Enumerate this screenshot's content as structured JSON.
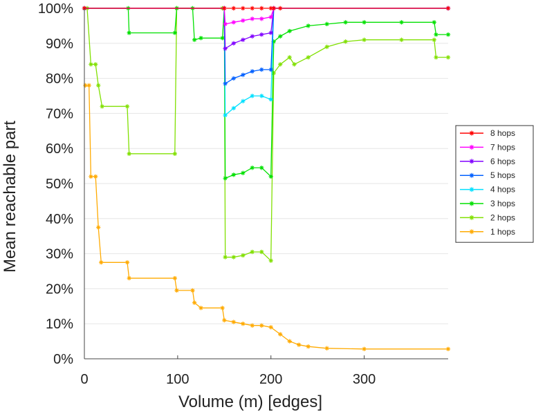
{
  "chart_data": {
    "type": "line",
    "xlabel": "Volume (m) [edges]",
    "ylabel": "Mean reachable part",
    "xlim": [
      0,
      390
    ],
    "ylim": [
      0,
      100
    ],
    "xticks": [
      0,
      100,
      200,
      300
    ],
    "yticks": [
      0,
      10,
      20,
      30,
      40,
      50,
      60,
      70,
      80,
      90,
      100
    ],
    "ytick_labels": [
      "0%",
      "10%",
      "20%",
      "30%",
      "40%",
      "50%",
      "60%",
      "70%",
      "80%",
      "90%",
      "100%"
    ],
    "grid": "horizontal",
    "legend_position": "right",
    "series": [
      {
        "name": "8 hops",
        "color": "#ff0000",
        "points": [
          [
            0,
            100
          ],
          [
            150,
            100
          ],
          [
            160,
            100
          ],
          [
            170,
            100
          ],
          [
            180,
            100
          ],
          [
            190,
            100
          ],
          [
            200,
            100
          ],
          [
            203,
            100
          ],
          [
            210,
            100
          ],
          [
            390,
            100
          ]
        ]
      },
      {
        "name": "7 hops",
        "color": "#ff00ff",
        "points": [
          [
            0,
            100
          ],
          [
            150,
            100
          ],
          [
            151,
            95.5
          ],
          [
            160,
            96
          ],
          [
            170,
            96.5
          ],
          [
            180,
            97
          ],
          [
            190,
            97
          ],
          [
            200,
            97.5
          ],
          [
            203,
            100
          ],
          [
            390,
            100
          ]
        ]
      },
      {
        "name": "6 hops",
        "color": "#8000ff",
        "points": [
          [
            0,
            100
          ],
          [
            150,
            100
          ],
          [
            151,
            88.5
          ],
          [
            160,
            90
          ],
          [
            170,
            91
          ],
          [
            180,
            92
          ],
          [
            190,
            92.5
          ],
          [
            200,
            93
          ],
          [
            203,
            100
          ],
          [
            390,
            100
          ]
        ]
      },
      {
        "name": "5 hops",
        "color": "#0060ff",
        "points": [
          [
            0,
            100
          ],
          [
            150,
            100
          ],
          [
            151,
            78.5
          ],
          [
            160,
            80
          ],
          [
            170,
            81
          ],
          [
            180,
            82
          ],
          [
            190,
            82.5
          ],
          [
            200,
            82.5
          ],
          [
            203,
            100
          ],
          [
            390,
            100
          ]
        ]
      },
      {
        "name": "4 hops",
        "color": "#00e0ff",
        "points": [
          [
            0,
            100
          ],
          [
            150,
            100
          ],
          [
            151,
            69.5
          ],
          [
            160,
            71.5
          ],
          [
            170,
            73.5
          ],
          [
            180,
            75
          ],
          [
            190,
            75
          ],
          [
            200,
            74
          ],
          [
            203,
            100
          ],
          [
            390,
            100
          ]
        ]
      },
      {
        "name": "3 hops",
        "color": "#00e000",
        "points": [
          [
            0,
            100
          ],
          [
            47,
            100
          ],
          [
            48,
            93
          ],
          [
            97,
            93
          ],
          [
            99,
            100
          ],
          [
            116,
            100
          ],
          [
            118,
            91
          ],
          [
            125,
            91.5
          ],
          [
            148,
            91.5
          ],
          [
            150,
            100
          ],
          [
            151,
            51.5
          ],
          [
            160,
            52.5
          ],
          [
            170,
            53
          ],
          [
            180,
            54.5
          ],
          [
            190,
            54.5
          ],
          [
            200,
            52
          ],
          [
            203,
            90.5
          ],
          [
            210,
            92
          ],
          [
            220,
            93.5
          ],
          [
            240,
            95
          ],
          [
            260,
            95.5
          ],
          [
            280,
            96
          ],
          [
            300,
            96
          ],
          [
            340,
            96
          ],
          [
            375,
            96
          ],
          [
            377,
            92.5
          ],
          [
            390,
            92.5
          ]
        ]
      },
      {
        "name": "2 hops",
        "color": "#80e000",
        "points": [
          [
            0,
            100
          ],
          [
            3,
            100
          ],
          [
            7,
            84
          ],
          [
            12,
            84
          ],
          [
            15,
            78
          ],
          [
            19,
            72
          ],
          [
            46,
            72
          ],
          [
            48,
            58.5
          ],
          [
            97,
            58.5
          ],
          [
            99,
            100
          ],
          [
            148,
            100
          ],
          [
            150,
            100
          ],
          [
            151,
            29
          ],
          [
            160,
            29
          ],
          [
            170,
            29.5
          ],
          [
            180,
            30.5
          ],
          [
            190,
            30.5
          ],
          [
            200,
            28
          ],
          [
            203,
            81.5
          ],
          [
            210,
            84
          ],
          [
            220,
            86
          ],
          [
            225,
            84
          ],
          [
            240,
            86
          ],
          [
            260,
            89
          ],
          [
            280,
            90.5
          ],
          [
            300,
            91
          ],
          [
            340,
            91
          ],
          [
            375,
            91
          ],
          [
            377,
            86
          ],
          [
            390,
            86
          ]
        ]
      },
      {
        "name": "1 hops",
        "color": "#ffaa00",
        "points": [
          [
            1,
            78
          ],
          [
            5,
            78
          ],
          [
            7,
            52
          ],
          [
            12,
            52
          ],
          [
            15,
            37.5
          ],
          [
            18,
            27.5
          ],
          [
            46,
            27.5
          ],
          [
            48,
            23
          ],
          [
            97,
            23
          ],
          [
            99,
            19.5
          ],
          [
            116,
            19.5
          ],
          [
            118,
            16
          ],
          [
            125,
            14.5
          ],
          [
            148,
            14.5
          ],
          [
            150,
            11
          ],
          [
            160,
            10.5
          ],
          [
            170,
            10
          ],
          [
            180,
            9.5
          ],
          [
            190,
            9.5
          ],
          [
            200,
            9
          ],
          [
            210,
            7
          ],
          [
            220,
            5
          ],
          [
            230,
            4
          ],
          [
            240,
            3.5
          ],
          [
            260,
            3
          ],
          [
            300,
            2.8
          ],
          [
            390,
            2.8
          ]
        ]
      }
    ]
  }
}
